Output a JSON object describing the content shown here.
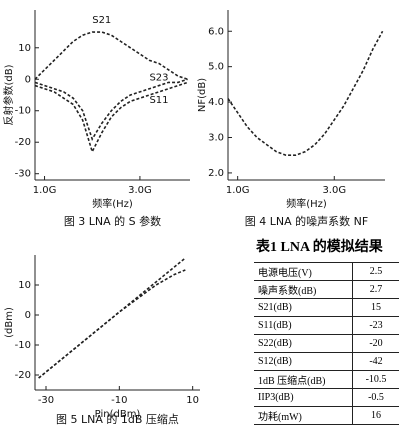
{
  "chart_data": [
    {
      "type": "line",
      "caption": "图 3  LNA 的 S 参数",
      "x_label": "频率(Hz)",
      "y_label": "反射参数(dB)",
      "x": [
        0.8,
        1.0,
        1.2,
        1.4,
        1.6,
        1.8,
        2.0,
        2.2,
        2.4,
        2.6,
        2.8,
        3.0,
        3.2,
        3.4,
        3.6,
        3.8,
        4.0
      ],
      "series": [
        {
          "name": "S21",
          "color": "#222222",
          "values": [
            0,
            3,
            6,
            9,
            12,
            14,
            15,
            15,
            14,
            12,
            10,
            8,
            6,
            5,
            3,
            1,
            0
          ]
        },
        {
          "name": "S23",
          "color": "#222222",
          "values": [
            -1,
            -2,
            -3,
            -4,
            -6,
            -10,
            -19,
            -14,
            -10,
            -7,
            -5,
            -4,
            -3,
            -2,
            -1,
            -1,
            0
          ]
        },
        {
          "name": "S11",
          "color": "#222222",
          "values": [
            -2,
            -3,
            -4,
            -6,
            -8,
            -13,
            -23,
            -17,
            -12,
            -9,
            -7,
            -6,
            -5,
            -4,
            -3,
            -2,
            -1
          ]
        }
      ],
      "xlim": [
        0.8,
        4.05
      ],
      "xticks": [
        {
          "value": 1.0,
          "label": "1.0G"
        },
        {
          "value": 3.0,
          "label": "3.0G"
        }
      ],
      "ylim": [
        -32,
        22
      ],
      "yticks": [
        10,
        0,
        -10,
        -20,
        -30
      ]
    },
    {
      "type": "line",
      "caption": "图 4  LNA 的噪声系数 NF",
      "x_label": "频率(Hz)",
      "y_label": "NF(dB)",
      "x": [
        0.8,
        1.0,
        1.2,
        1.4,
        1.6,
        1.8,
        2.0,
        2.2,
        2.4,
        2.6,
        2.8,
        3.0,
        3.2,
        3.4,
        3.6,
        3.8,
        4.0
      ],
      "series": [
        {
          "color": "#222222",
          "values": [
            4.1,
            3.7,
            3.3,
            3.0,
            2.8,
            2.6,
            2.5,
            2.5,
            2.6,
            2.8,
            3.1,
            3.5,
            3.9,
            4.4,
            4.9,
            5.5,
            6.0
          ]
        }
      ],
      "xlim": [
        0.8,
        4.05
      ],
      "xticks": [
        {
          "value": 1.0,
          "label": "1.0G"
        },
        {
          "value": 3.0,
          "label": "3.0G"
        }
      ],
      "ylim": [
        1.8,
        6.6
      ],
      "yticks": [
        {
          "value": 6,
          "label": "6.0"
        },
        {
          "value": 5,
          "label": "5.0"
        },
        {
          "value": 4,
          "label": "4.0"
        },
        {
          "value": 3,
          "label": "3.0"
        },
        {
          "value": 2,
          "label": "2.0"
        }
      ]
    },
    {
      "type": "line",
      "caption": "图 5  LNA 的 1dB 压缩点",
      "x_label": "Pin(dBm)",
      "y_label": "(dBm)",
      "x": [
        -32,
        -30,
        -20,
        -10,
        -5,
        0,
        5,
        8
      ],
      "series": [
        {
          "color": "#222222",
          "values": [
            -21,
            -19,
            -9,
            1,
            6,
            11,
            16,
            19
          ]
        },
        {
          "color": "#222222",
          "values": [
            -21,
            -19,
            -9,
            1,
            5.5,
            10,
            13.5,
            15
          ]
        }
      ],
      "xlim": [
        -33,
        12
      ],
      "xticks": [
        -30,
        -10,
        10
      ],
      "ylim": [
        -25,
        20
      ],
      "yticks": [
        10,
        0,
        -10,
        -20
      ]
    }
  ],
  "table": {
    "title": "表1 LNA 的模拟结果",
    "rows": [
      [
        "电源电压(V)",
        "2.5"
      ],
      [
        "噪声系数(dB)",
        "2.7"
      ],
      [
        "S21(dB)",
        "15"
      ],
      [
        "S11(dB)",
        "-23"
      ],
      [
        "S22(dB)",
        "-20"
      ],
      [
        "S12(dB)",
        "-42"
      ],
      [
        "1dB 压缩点(dB)",
        "-10.5"
      ],
      [
        "IIP3(dB)",
        "-0.5"
      ],
      [
        "功耗(mW)",
        "16"
      ]
    ]
  }
}
